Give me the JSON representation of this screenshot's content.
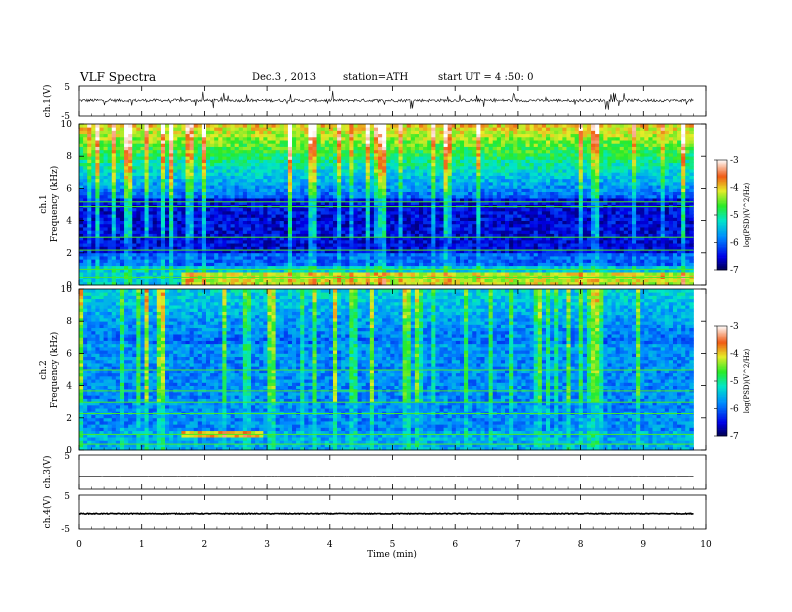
{
  "header": {
    "title": "VLF Spectra",
    "date": "Dec.3 , 2013",
    "station": "station=ATH",
    "start": "start UT = 4 :50: 0"
  },
  "chart_data": [
    {
      "type": "line",
      "panel": "ch1-waveform",
      "ylabel": "ch.1(V)",
      "yticks": [
        "5",
        "-5"
      ],
      "ylim": [
        -5,
        5
      ],
      "xlim": [
        0,
        10
      ],
      "trace_level": 0.2,
      "trace_noise": 1.0,
      "data_end": 9.8
    },
    {
      "type": "heatmap",
      "panel": "ch1-spectrogram",
      "ylabel_top": "ch.1",
      "ylabel": "Frequency (kHz)",
      "ylim": [
        0,
        10
      ],
      "yticks": [
        "0",
        "2",
        "4",
        "6",
        "8",
        "10"
      ],
      "xlim": [
        0,
        10
      ],
      "data_end": 9.8,
      "colorbar": {
        "label": "log(PSD)(V^2/Hz)",
        "range": [
          -7,
          -3
        ],
        "ticks": [
          "-3",
          "-4",
          "-5",
          "-6",
          "-7"
        ]
      }
    },
    {
      "type": "heatmap",
      "panel": "ch2-spectrogram",
      "ylabel_top": "ch.2",
      "ylabel": "Frequency (kHz)",
      "ylim": [
        0,
        10
      ],
      "yticks": [
        "0",
        "2",
        "4",
        "6",
        "8",
        "10"
      ],
      "xlim": [
        0,
        10
      ],
      "data_end": 9.8,
      "colorbar": {
        "label": "log(PSD)(V^2/Hz)",
        "range": [
          -7,
          -3
        ],
        "ticks": [
          "-3",
          "-4",
          "-5",
          "-6",
          "-7"
        ]
      }
    },
    {
      "type": "line",
      "panel": "ch3-waveform",
      "ylabel": "ch.3(V)",
      "yticks": [
        "5"
      ],
      "ylim": [
        -5,
        5
      ],
      "xlim": [
        0,
        10
      ],
      "trace_level": -1.3,
      "trace_noise": 0.02,
      "data_end": 9.8
    },
    {
      "type": "line",
      "panel": "ch4-waveform",
      "ylabel": "ch.4(V)",
      "yticks": [
        "5",
        "-5"
      ],
      "ylim": [
        -5,
        5
      ],
      "xlim": [
        0,
        10
      ],
      "trace_level": -0.5,
      "trace_noise": 0.25,
      "data_end": 9.8
    }
  ],
  "xaxis": {
    "label": "Time (min)",
    "ticks": [
      "0",
      "1",
      "2",
      "3",
      "4",
      "5",
      "6",
      "7",
      "8",
      "9",
      "10"
    ]
  }
}
